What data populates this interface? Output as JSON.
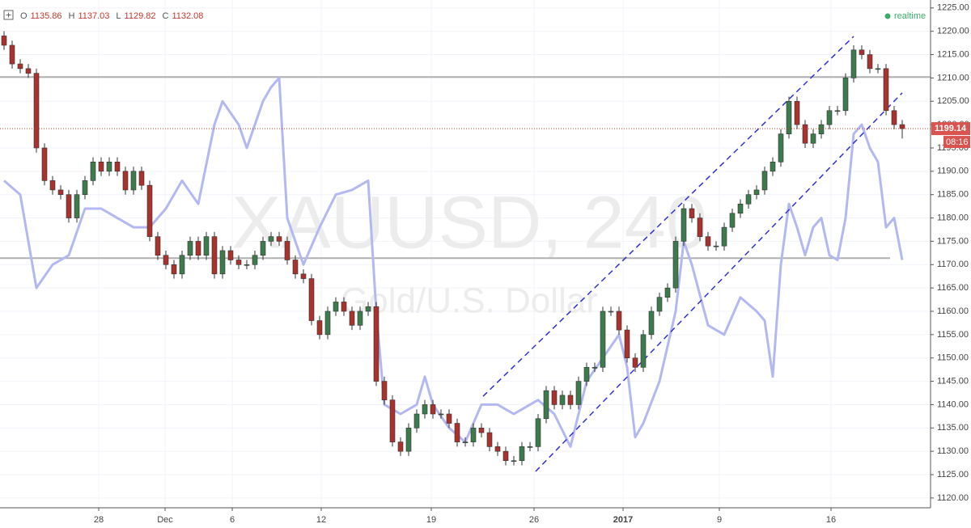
{
  "chart_data": {
    "type": "candlestick",
    "title": "XAUUSD, 240",
    "subtitle": "Gold/U.S. Dollar",
    "ohlc_labels": [
      "O",
      "H",
      "L",
      "C"
    ],
    "ohlc_values": [
      1135.86,
      1137.03,
      1129.82,
      1132.08
    ],
    "status": "realtime",
    "last_price": 1199.14,
    "countdown": "08:16",
    "up_color": "#3d7b4c",
    "down_color": "#a8322d",
    "compare_color": "#b3b8f2",
    "channel_color": "#3030d0",
    "level_color": "#b0b0b0",
    "grid": true,
    "xlim": [
      -0.5,
      114.5
    ],
    "ylim": [
      1117.9,
      1226.7
    ],
    "xticks": [
      {
        "value": 11.7,
        "label": "28"
      },
      {
        "value": 19.9,
        "label": "Dec"
      },
      {
        "value": 28.2,
        "label": "6"
      },
      {
        "value": 39.2,
        "label": "12"
      },
      {
        "value": 52.8,
        "label": "19"
      },
      {
        "value": 65.5,
        "label": "26"
      },
      {
        "value": 76.5,
        "label": "2017"
      },
      {
        "value": 88.4,
        "label": "9"
      },
      {
        "value": 102.2,
        "label": "16"
      }
    ],
    "yticks": [
      {
        "value": 1120,
        "label": "1120.00"
      },
      {
        "value": 1125,
        "label": "1125.00"
      },
      {
        "value": 1130,
        "label": "1130.00"
      },
      {
        "value": 1135,
        "label": "1135.00"
      },
      {
        "value": 1140,
        "label": "1140.00"
      },
      {
        "value": 1145,
        "label": "1145.00"
      },
      {
        "value": 1150,
        "label": "1150.00"
      },
      {
        "value": 1155,
        "label": "1155.00"
      },
      {
        "value": 1160,
        "label": "1160.00"
      },
      {
        "value": 1165,
        "label": "1165.00"
      },
      {
        "value": 1170,
        "label": "1170.00"
      },
      {
        "value": 1175,
        "label": "1175.00"
      },
      {
        "value": 1180,
        "label": "1180.00"
      },
      {
        "value": 1185,
        "label": "1185.00"
      },
      {
        "value": 1190,
        "label": "1190.00"
      },
      {
        "value": 1195,
        "label": "1195.00"
      },
      {
        "value": 1200,
        "label": "1200.00"
      },
      {
        "value": 1205,
        "label": "1205.00"
      },
      {
        "value": 1210,
        "label": "1210.00"
      },
      {
        "value": 1215,
        "label": "1215.00"
      },
      {
        "value": 1220,
        "label": "1220.00"
      },
      {
        "value": 1225,
        "label": "1225.00"
      }
    ],
    "levels": [
      {
        "y": 1210.2,
        "x": [
          -0.5,
          114.5
        ]
      },
      {
        "y": 1171.4,
        "x": [
          -0.5,
          109.5
        ]
      }
    ],
    "channel": [
      {
        "x": [
          59.2,
          105
        ],
        "y": [
          1141.8,
          1218.9
        ]
      },
      {
        "x": [
          65.7,
          111
        ],
        "y": [
          1125.7,
          1206.8
        ]
      }
    ],
    "candles": [
      [
        1219,
        1220,
        1216,
        1217
      ],
      [
        1217,
        1218,
        1212,
        1213
      ],
      [
        1213,
        1214,
        1211,
        1212
      ],
      [
        1212,
        1213,
        1210,
        1211
      ],
      [
        1211,
        1212,
        1194,
        1195
      ],
      [
        1195,
        1196,
        1187,
        1188
      ],
      [
        1188,
        1189,
        1185,
        1186
      ],
      [
        1186,
        1187,
        1184,
        1185
      ],
      [
        1185,
        1186,
        1179,
        1180
      ],
      [
        1180,
        1186,
        1179,
        1185
      ],
      [
        1185,
        1189,
        1184,
        1188
      ],
      [
        1188,
        1193,
        1187,
        1192
      ],
      [
        1192,
        1193,
        1189,
        1190
      ],
      [
        1190,
        1193,
        1189,
        1192
      ],
      [
        1192,
        1193,
        1189,
        1190
      ],
      [
        1190,
        1191,
        1185,
        1186
      ],
      [
        1186,
        1191,
        1185,
        1190
      ],
      [
        1190,
        1191,
        1186,
        1187
      ],
      [
        1187,
        1188,
        1175,
        1176
      ],
      [
        1176,
        1177,
        1171,
        1172
      ],
      [
        1172,
        1173,
        1169,
        1170
      ],
      [
        1170,
        1171,
        1167,
        1168
      ],
      [
        1168,
        1173,
        1167,
        1172
      ],
      [
        1172,
        1176,
        1171,
        1175
      ],
      [
        1175,
        1176,
        1171,
        1172
      ],
      [
        1172,
        1177,
        1171,
        1176
      ],
      [
        1176,
        1177,
        1167,
        1168
      ],
      [
        1168,
        1174,
        1167,
        1173
      ],
      [
        1173,
        1174,
        1170,
        1171
      ],
      [
        1171,
        1172,
        1169,
        1170
      ],
      [
        1170,
        1171,
        1169,
        1170
      ],
      [
        1170,
        1173,
        1169,
        1172
      ],
      [
        1172,
        1176,
        1171,
        1175
      ],
      [
        1175,
        1177,
        1174,
        1176
      ],
      [
        1176,
        1177,
        1174,
        1175
      ],
      [
        1175,
        1176,
        1170,
        1171
      ],
      [
        1171,
        1172,
        1167,
        1168
      ],
      [
        1168,
        1169,
        1166,
        1167
      ],
      [
        1167,
        1168,
        1157,
        1158
      ],
      [
        1158,
        1159,
        1154,
        1155
      ],
      [
        1155,
        1161,
        1154,
        1160
      ],
      [
        1160,
        1163,
        1159,
        1162
      ],
      [
        1162,
        1163,
        1159,
        1160
      ],
      [
        1160,
        1161,
        1156,
        1157
      ],
      [
        1157,
        1161,
        1156,
        1160
      ],
      [
        1160,
        1162,
        1159,
        1161
      ],
      [
        1161,
        1162,
        1144,
        1145
      ],
      [
        1145,
        1146,
        1140,
        1141
      ],
      [
        1141,
        1142,
        1131,
        1132
      ],
      [
        1132,
        1133,
        1129,
        1130
      ],
      [
        1130,
        1136,
        1129,
        1135
      ],
      [
        1135,
        1139,
        1134,
        1138
      ],
      [
        1138,
        1141,
        1137,
        1140
      ],
      [
        1140,
        1141,
        1137,
        1138
      ],
      [
        1138,
        1139,
        1137,
        1138
      ],
      [
        1138,
        1139,
        1135,
        1136
      ],
      [
        1136,
        1137,
        1131,
        1132
      ],
      [
        1132,
        1133,
        1131,
        1132
      ],
      [
        1132,
        1136,
        1131,
        1135
      ],
      [
        1135,
        1136,
        1133,
        1134
      ],
      [
        1134,
        1135,
        1130,
        1131
      ],
      [
        1131,
        1132,
        1129,
        1130
      ],
      [
        1130,
        1131,
        1127,
        1128
      ],
      [
        1128,
        1129,
        1127,
        1128
      ],
      [
        1128,
        1132,
        1127,
        1131
      ],
      [
        1131,
        1132,
        1130,
        1131
      ],
      [
        1131,
        1138,
        1130,
        1137
      ],
      [
        1137,
        1144,
        1136,
        1143
      ],
      [
        1143,
        1144,
        1139,
        1140
      ],
      [
        1140,
        1143,
        1139,
        1142
      ],
      [
        1142,
        1143,
        1139,
        1140
      ],
      [
        1140,
        1146,
        1139,
        1145
      ],
      [
        1145,
        1149,
        1144,
        1148
      ],
      [
        1148,
        1149,
        1147,
        1148
      ],
      [
        1148,
        1161,
        1147,
        1160
      ],
      [
        1160,
        1161,
        1159,
        1160
      ],
      [
        1160,
        1161,
        1155,
        1156
      ],
      [
        1156,
        1157,
        1149,
        1150
      ],
      [
        1150,
        1151,
        1147,
        1148
      ],
      [
        1148,
        1156,
        1147,
        1155
      ],
      [
        1155,
        1161,
        1154,
        1160
      ],
      [
        1160,
        1164,
        1159,
        1163
      ],
      [
        1163,
        1166,
        1162,
        1165
      ],
      [
        1165,
        1176,
        1164,
        1175
      ],
      [
        1175,
        1183,
        1174,
        1182
      ],
      [
        1182,
        1183,
        1179,
        1180
      ],
      [
        1180,
        1181,
        1175,
        1176
      ],
      [
        1176,
        1177,
        1173,
        1174
      ],
      [
        1174,
        1175,
        1173,
        1174
      ],
      [
        1174,
        1179,
        1173,
        1178
      ],
      [
        1178,
        1182,
        1177,
        1181
      ],
      [
        1181,
        1184,
        1180,
        1183
      ],
      [
        1183,
        1186,
        1182,
        1185
      ],
      [
        1185,
        1187,
        1184,
        1186
      ],
      [
        1186,
        1191,
        1185,
        1190
      ],
      [
        1190,
        1193,
        1189,
        1192
      ],
      [
        1192,
        1199,
        1191,
        1198
      ],
      [
        1198,
        1206,
        1197,
        1205
      ],
      [
        1205,
        1206,
        1199,
        1200
      ],
      [
        1200,
        1201,
        1195,
        1196
      ],
      [
        1196,
        1199,
        1195,
        1198
      ],
      [
        1198,
        1201,
        1197,
        1200
      ],
      [
        1200,
        1204,
        1199,
        1203
      ],
      [
        1203,
        1204,
        1202,
        1203
      ],
      [
        1203,
        1211,
        1202,
        1210
      ],
      [
        1210,
        1217,
        1209,
        1216
      ],
      [
        1216,
        1217,
        1214,
        1215
      ],
      [
        1215,
        1216,
        1211,
        1212
      ],
      [
        1212,
        1213,
        1211,
        1212
      ],
      [
        1212,
        1213,
        1202,
        1203
      ],
      [
        1203,
        1204,
        1199,
        1200
      ],
      [
        1200,
        1201,
        1197,
        1199.14
      ]
    ],
    "compare_line": {
      "x": [
        0,
        2,
        4,
        6,
        8,
        10,
        12,
        14,
        16,
        18,
        20,
        22,
        24,
        26,
        27,
        29,
        30,
        32,
        33,
        34,
        35,
        37,
        39,
        41,
        43,
        45,
        46,
        47,
        49,
        51,
        52,
        53,
        55,
        57,
        59,
        61,
        63,
        65,
        66,
        68,
        70,
        72,
        74,
        76,
        77,
        78,
        79,
        81,
        83,
        84,
        85,
        87,
        89,
        91,
        93,
        94,
        95,
        96,
        97,
        98,
        99,
        100,
        101,
        102,
        103,
        104,
        105,
        106,
        107,
        108,
        109,
        110,
        111
      ],
      "values": [
        1188,
        1185,
        1165,
        1170,
        1172,
        1182,
        1182,
        1180,
        1178,
        1178,
        1182,
        1188,
        1183,
        1200,
        1205,
        1200,
        1195,
        1205,
        1208,
        1210,
        1180,
        1170,
        1178,
        1185,
        1186,
        1188,
        1160,
        1140,
        1138,
        1140,
        1146,
        1140,
        1135,
        1132,
        1140,
        1140,
        1138,
        1140,
        1141,
        1138,
        1131,
        1145,
        1150,
        1155,
        1148,
        1133,
        1136,
        1145,
        1160,
        1175,
        1170,
        1157,
        1155,
        1163,
        1160,
        1158,
        1146,
        1170,
        1183,
        1178,
        1172,
        1178,
        1180,
        1172,
        1171,
        1180,
        1198,
        1200,
        1195,
        1192,
        1178,
        1180,
        1171
      ]
    }
  }
}
